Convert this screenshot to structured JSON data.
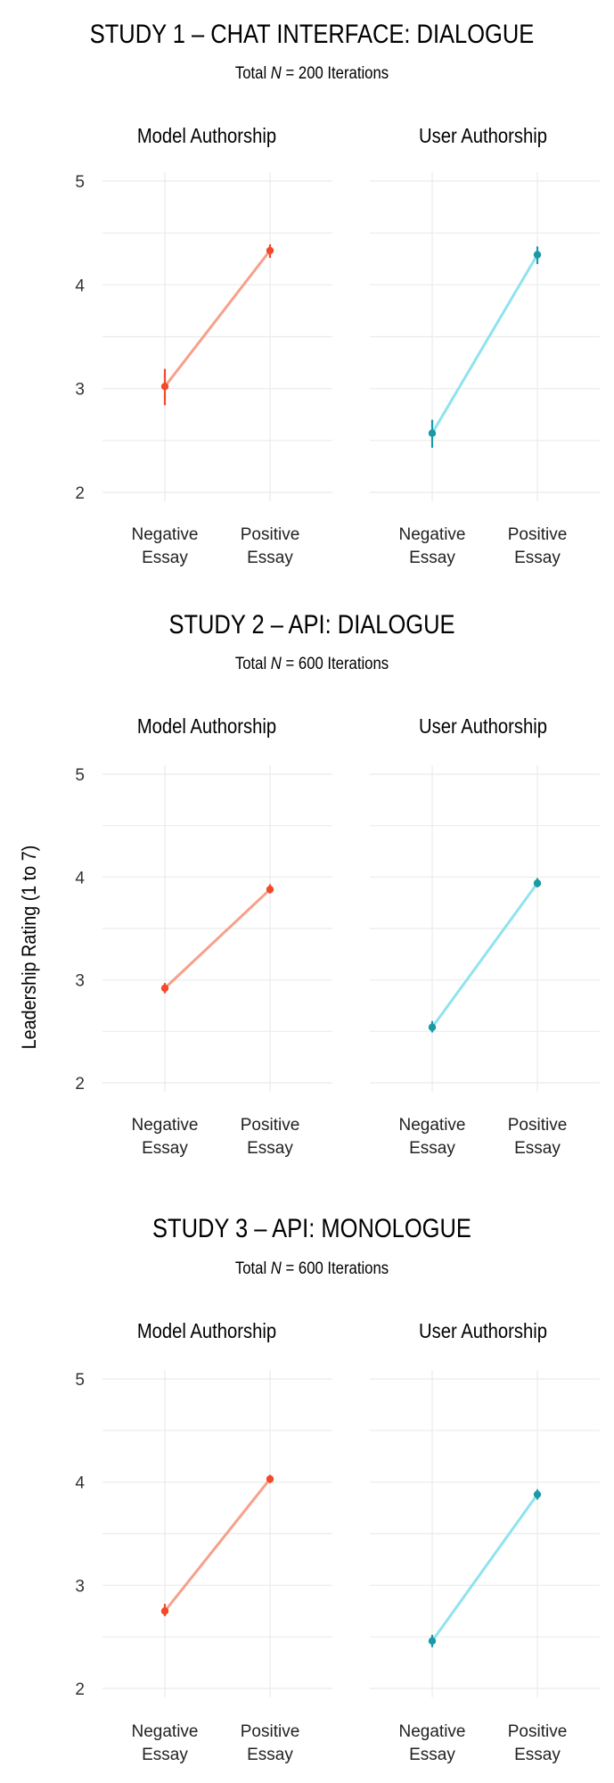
{
  "figure": {
    "ylabel": "Leadership Rating (1 to 7)"
  },
  "colors": {
    "model_line": "#f7a08a",
    "model_point": "#f2492a",
    "user_line": "#8fe3ee",
    "user_point": "#1a9aa6"
  },
  "chart_data": [
    {
      "type": "line",
      "title": "STUDY 1 – CHAT INTERFACE: DIALOGUE",
      "subtitle_prefix": "Total ",
      "subtitle_n": "N",
      "subtitle_suffix": " = 200 Iterations",
      "ylim": [
        2,
        5
      ],
      "yticks": [
        "2",
        "3",
        "4",
        "5"
      ],
      "categories": [
        [
          "Negative",
          "Essay"
        ],
        [
          "Positive",
          "Essay"
        ]
      ],
      "panels": [
        {
          "name": "Model Authorship",
          "series": "model",
          "values": [
            3.02,
            4.33
          ],
          "ci": [
            [
              2.84,
              3.19
            ],
            [
              4.26,
              4.39
            ]
          ]
        },
        {
          "name": "User Authorship",
          "series": "user",
          "values": [
            2.57,
            4.29
          ],
          "ci": [
            [
              2.43,
              2.7
            ],
            [
              4.2,
              4.37
            ]
          ]
        }
      ]
    },
    {
      "type": "line",
      "title": "STUDY 2 – API: DIALOGUE",
      "subtitle_prefix": "Total ",
      "subtitle_n": "N",
      "subtitle_suffix": " = 600 Iterations",
      "ylim": [
        2,
        5
      ],
      "yticks": [
        "2",
        "3",
        "4",
        "5"
      ],
      "categories": [
        [
          "Negative",
          "Essay"
        ],
        [
          "Positive",
          "Essay"
        ]
      ],
      "panels": [
        {
          "name": "Model Authorship",
          "series": "model",
          "values": [
            2.92,
            3.88
          ],
          "ci": [
            [
              2.87,
              2.97
            ],
            [
              3.84,
              3.93
            ]
          ]
        },
        {
          "name": "User Authorship",
          "series": "user",
          "values": [
            2.54,
            3.94
          ],
          "ci": [
            [
              2.49,
              2.6
            ],
            [
              3.9,
              3.99
            ]
          ]
        }
      ]
    },
    {
      "type": "line",
      "title": "STUDY 3 – API: MONOLOGUE",
      "subtitle_prefix": "Total ",
      "subtitle_n": "N",
      "subtitle_suffix": " = 600 Iterations",
      "ylim": [
        2,
        5
      ],
      "yticks": [
        "2",
        "3",
        "4",
        "5"
      ],
      "categories": [
        [
          "Negative",
          "Essay"
        ],
        [
          "Positive",
          "Essay"
        ]
      ],
      "panels": [
        {
          "name": "Model Authorship",
          "series": "model",
          "values": [
            2.75,
            4.03
          ],
          "ci": [
            [
              2.7,
              2.82
            ],
            [
              3.99,
              4.07
            ]
          ]
        },
        {
          "name": "User Authorship",
          "series": "user",
          "values": [
            2.46,
            3.88
          ],
          "ci": [
            [
              2.4,
              2.52
            ],
            [
              3.83,
              3.93
            ]
          ]
        }
      ]
    }
  ]
}
